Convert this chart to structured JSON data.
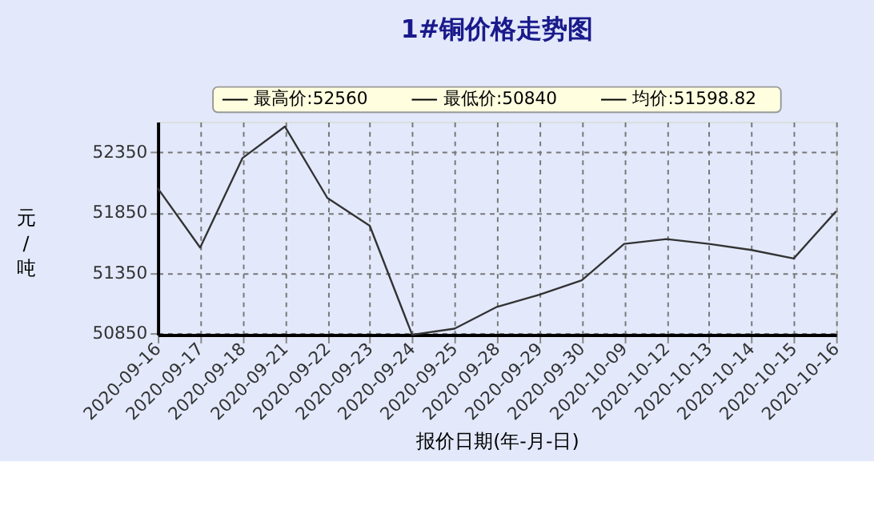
{
  "chart_data": {
    "type": "line",
    "title": "1#铜价格走势图",
    "xlabel": "报价日期(年-月-日)",
    "ylabel": "元/吨",
    "categories": [
      "2020-09-16",
      "2020-09-17",
      "2020-09-18",
      "2020-09-21",
      "2020-09-22",
      "2020-09-23",
      "2020-09-24",
      "2020-09-25",
      "2020-09-28",
      "2020-09-29",
      "2020-09-30",
      "2020-10-09",
      "2020-10-12",
      "2020-10-13",
      "2020-10-14",
      "2020-10-15",
      "2020-10-16"
    ],
    "series": [
      {
        "color": "#333333",
        "values": [
          52050,
          51560,
          52300,
          52560,
          51970,
          51740,
          50840,
          50890,
          51070,
          51170,
          51290,
          51590,
          51630,
          51590,
          51540,
          51470,
          51860
        ]
      }
    ],
    "ylim": [
      50840,
      52600
    ],
    "yticks": [
      50850,
      51350,
      51850,
      52350
    ],
    "grid": true,
    "marker": "none",
    "line_style": "solid",
    "annotations": [
      "最高价:52560",
      "最低价:50840",
      "均价:51598.82"
    ]
  }
}
